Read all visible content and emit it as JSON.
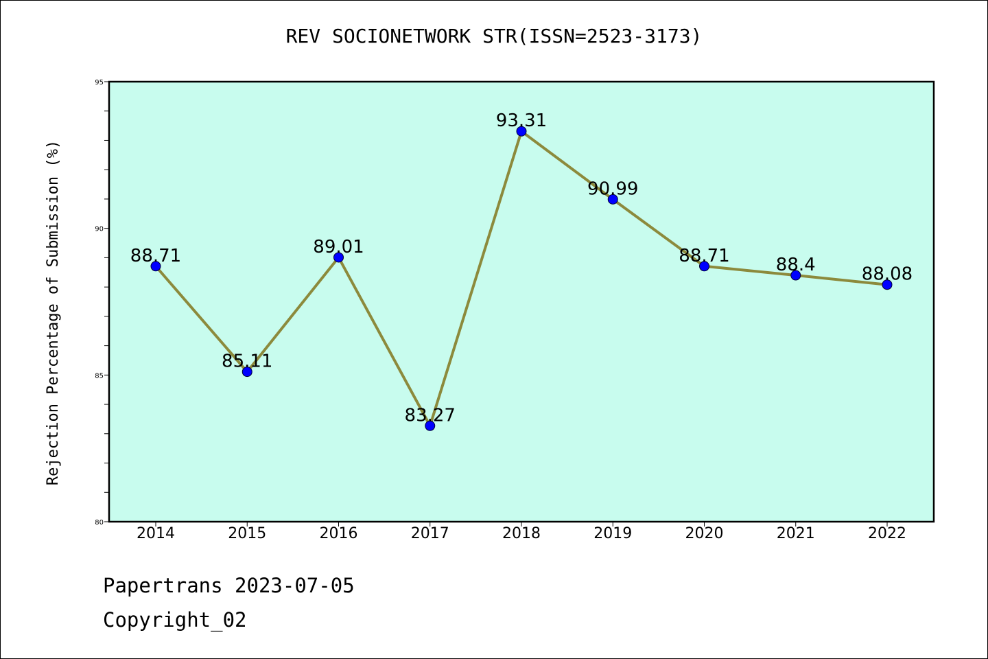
{
  "chart_data": {
    "type": "line",
    "title": "REV SOCIONETWORK STR(ISSN=2523-3173)",
    "xlabel": "",
    "ylabel": "Rejection Percentage of Submission (%)",
    "categories": [
      "2014",
      "2015",
      "2016",
      "2017",
      "2018",
      "2019",
      "2020",
      "2021",
      "2022"
    ],
    "series": [
      {
        "values": [
          88.71,
          85.11,
          89.01,
          83.27,
          93.31,
          90.99,
          88.71,
          88.4,
          88.08
        ]
      }
    ],
    "data_labels": [
      "88.71",
      "85.11",
      "89.01",
      "83.27",
      "93.31",
      "90.99",
      "88.71",
      "88.4",
      "88.08"
    ],
    "ylim": [
      80,
      95
    ],
    "yticks": [
      80,
      85,
      90,
      95
    ],
    "grid": false,
    "colors": {
      "plot_background": "#c8fcee",
      "line": "#8c8a3c",
      "marker": "#0000ff"
    }
  },
  "footer": {
    "line1": "Papertrans 2023-07-05",
    "line2": "Copyright_02"
  }
}
